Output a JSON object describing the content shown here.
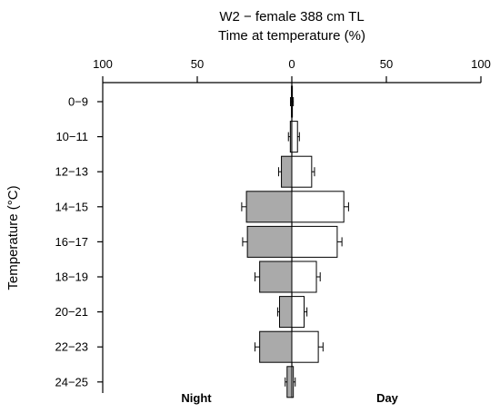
{
  "chart_data": {
    "type": "bar",
    "orientation": "horizontal-back-to-back",
    "title": "W2 − female 388 cm TL",
    "subtitle": "Time at temperature (%)",
    "ylabel": "Temperature (°C)",
    "xlim": [
      0,
      100
    ],
    "x_ticks": [
      100,
      50,
      0,
      50,
      100
    ],
    "left_label": "Night",
    "right_label": "Day",
    "categories": [
      "0−9",
      "10−11",
      "12−13",
      "14−15",
      "16−17",
      "18−19",
      "20−21",
      "22−23",
      "24−25"
    ],
    "series": [
      {
        "name": "Night",
        "values": [
          0.2,
          0.8,
          5.5,
          24,
          23.5,
          17,
          6.5,
          17,
          2.5
        ],
        "errors": [
          0.5,
          1,
          1.5,
          2.5,
          2.5,
          2.5,
          1,
          2.5,
          1
        ]
      },
      {
        "name": "Day",
        "values": [
          0.3,
          3,
          10.5,
          27.5,
          24,
          13,
          6.5,
          14,
          0.8
        ],
        "errors": [
          0.5,
          1,
          1.5,
          2.5,
          2.5,
          2,
          1.5,
          2.5,
          1
        ]
      }
    ]
  }
}
